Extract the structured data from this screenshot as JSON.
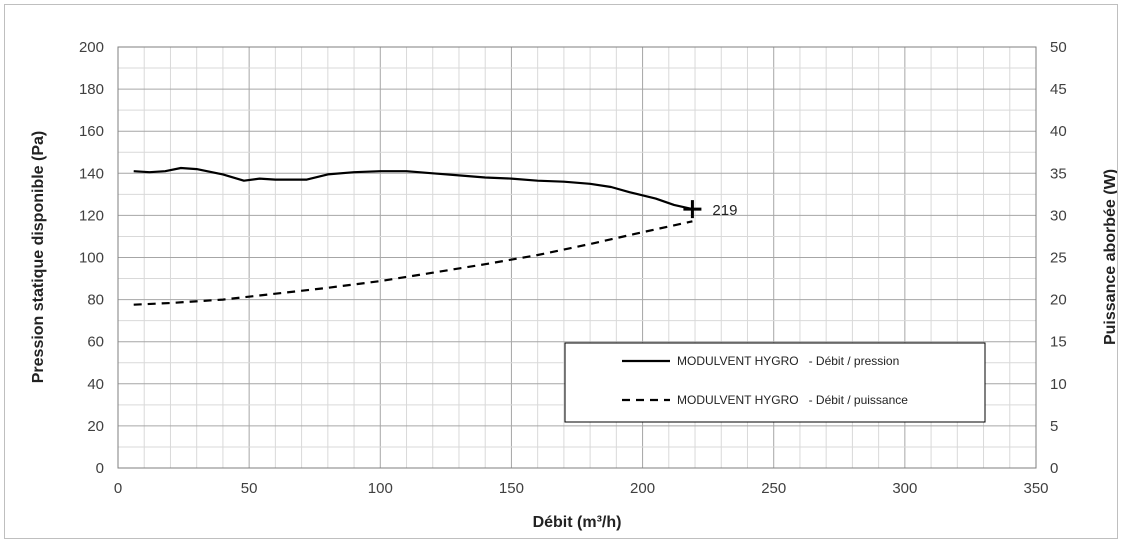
{
  "chart_data": {
    "type": "line",
    "title": "",
    "xlabel": "Débit (m³/h)",
    "ylabel": "Pression statique disponible (Pa)",
    "y2label": "Puissance aborbée (W)",
    "xlim": [
      0,
      350
    ],
    "ylim": [
      0,
      200
    ],
    "y2lim": [
      0,
      50
    ],
    "xticks": [
      "0",
      "50",
      "100",
      "150",
      "200",
      "250",
      "300",
      "350"
    ],
    "yticks": [
      "0",
      "20",
      "40",
      "60",
      "80",
      "100",
      "120",
      "140",
      "160",
      "180",
      "200"
    ],
    "y2ticks": [
      "0",
      "5",
      "10",
      "15",
      "20",
      "25",
      "30",
      "35",
      "40",
      "45",
      "50"
    ],
    "grid": true,
    "legend_position": "lower-right",
    "series": [
      {
        "name": "MODULVENT HYGRO   - Débit / pression",
        "axis": "left",
        "style": "solid",
        "color": "#000000",
        "points": [
          [
            6,
            141
          ],
          [
            12,
            140.5
          ],
          [
            18,
            141
          ],
          [
            24,
            142.5
          ],
          [
            30,
            142
          ],
          [
            40,
            139.5
          ],
          [
            48,
            136.5
          ],
          [
            54,
            137.5
          ],
          [
            60,
            137
          ],
          [
            72,
            137
          ],
          [
            80,
            139.5
          ],
          [
            90,
            140.5
          ],
          [
            100,
            141
          ],
          [
            110,
            141
          ],
          [
            120,
            140
          ],
          [
            130,
            139
          ],
          [
            140,
            138
          ],
          [
            150,
            137.5
          ],
          [
            160,
            136.5
          ],
          [
            170,
            136
          ],
          [
            180,
            135
          ],
          [
            188,
            133.5
          ],
          [
            195,
            131
          ],
          [
            205,
            128
          ],
          [
            212,
            125
          ],
          [
            219,
            123
          ]
        ]
      },
      {
        "name": "MODULVENT HYGRO   - Débit / puissance",
        "axis": "right",
        "style": "dashed",
        "color": "#000000",
        "points": [
          [
            6,
            19.4
          ],
          [
            20,
            19.6
          ],
          [
            40,
            20
          ],
          [
            60,
            20.7
          ],
          [
            80,
            21.4
          ],
          [
            100,
            22.2
          ],
          [
            120,
            23.2
          ],
          [
            140,
            24.2
          ],
          [
            160,
            25.3
          ],
          [
            180,
            26.6
          ],
          [
            200,
            28
          ],
          [
            219,
            29.3
          ]
        ]
      }
    ],
    "annotations": [
      {
        "text": "219",
        "x": 219,
        "y": 123,
        "marker": "plus"
      }
    ]
  }
}
